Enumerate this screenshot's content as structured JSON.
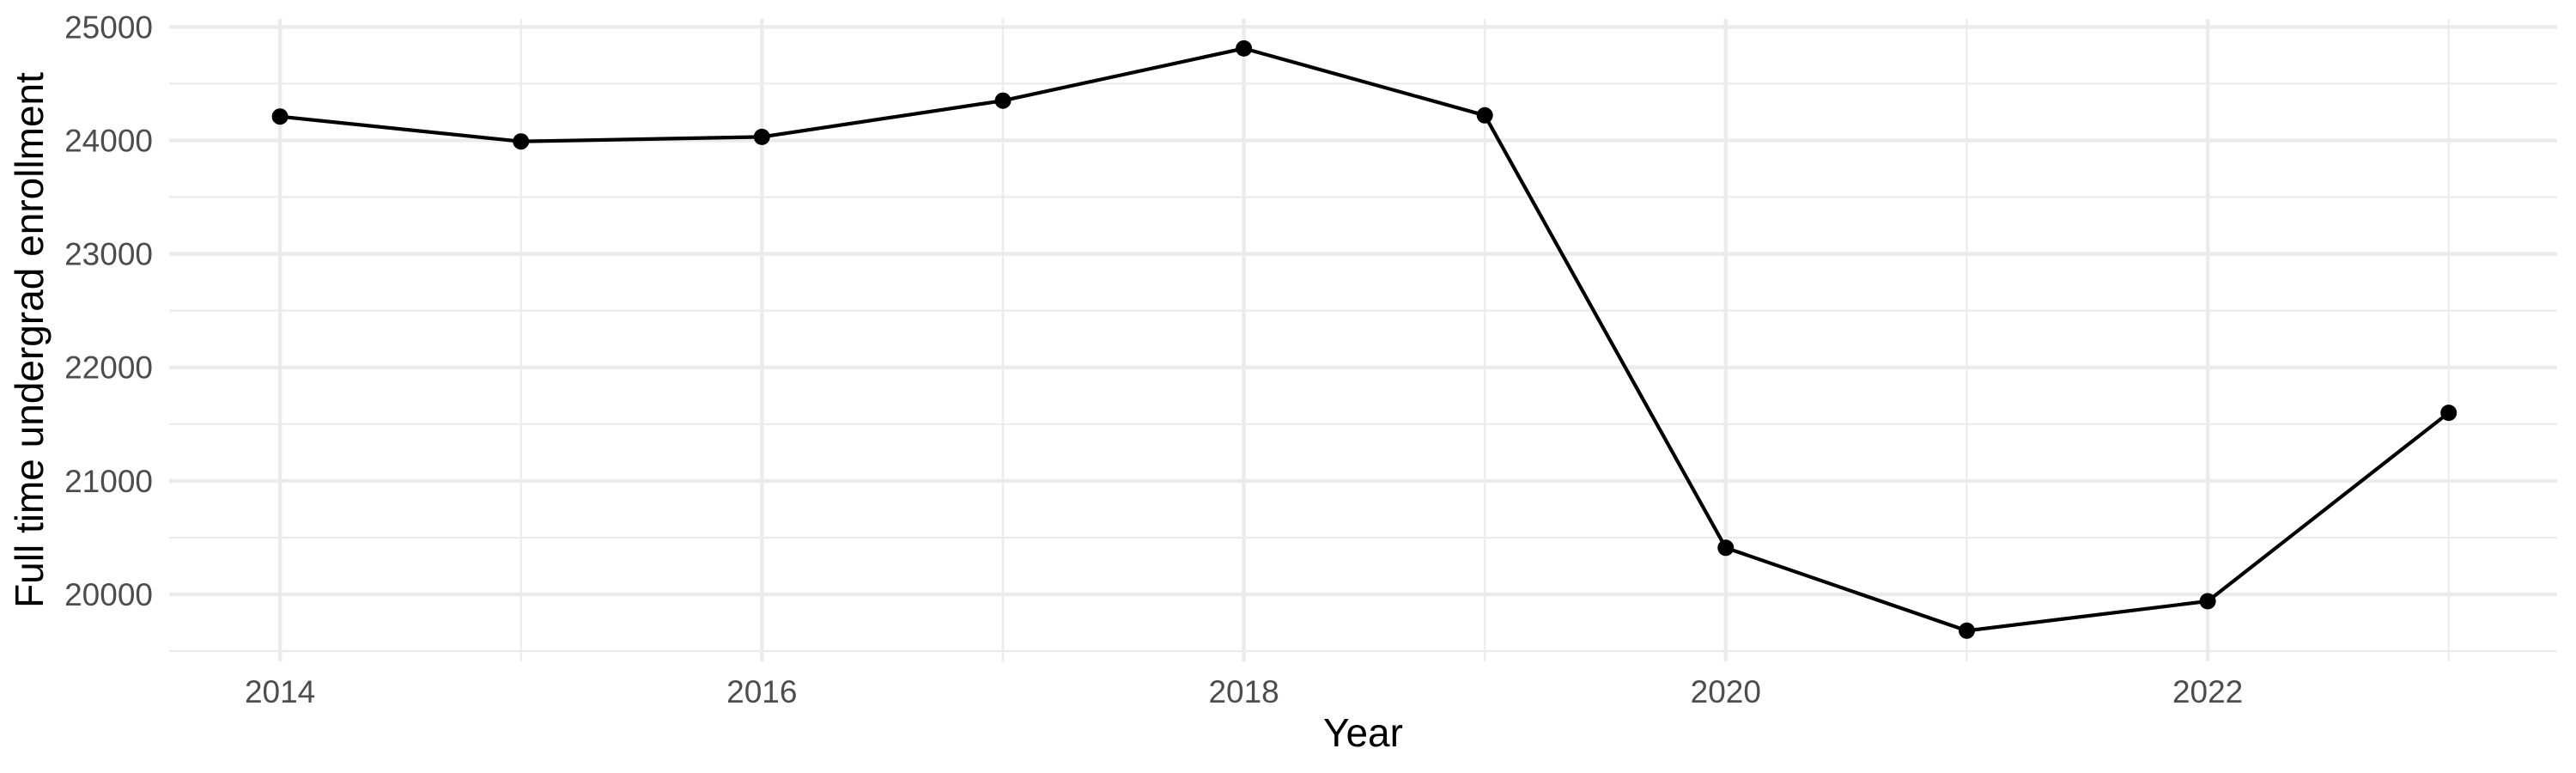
{
  "figure": {
    "background": "#FFFFFF"
  },
  "chart_data": {
    "type": "line",
    "title": "",
    "xlabel": "Year",
    "ylabel": "Full time undergrad enrollment",
    "x": [
      2014,
      2015,
      2016,
      2017,
      2018,
      2019,
      2020,
      2021,
      2022,
      2023
    ],
    "series": [
      {
        "name": "Full time undergrad enrollment",
        "values": [
          24210,
          23990,
          24030,
          24350,
          24810,
          24220,
          20410,
          19680,
          19940,
          21600
        ]
      }
    ],
    "x_tick_labels": [
      "2014",
      "2016",
      "2018",
      "2020",
      "2022"
    ],
    "x_tick_positions": [
      2014,
      2016,
      2018,
      2020,
      2022
    ],
    "x_minor_gridlines": [
      2015,
      2017,
      2019,
      2021,
      2023
    ],
    "y_tick_labels": [
      "20000",
      "21000",
      "22000",
      "23000",
      "24000",
      "25000"
    ],
    "y_tick_positions": [
      20000,
      21000,
      22000,
      23000,
      24000,
      25000
    ],
    "y_minor_gridlines": [
      19500,
      20500,
      21500,
      22500,
      23500,
      24500
    ],
    "xlim": [
      2013.54,
      2023.45
    ],
    "ylim": [
      19410,
      25070
    ],
    "grid": "major-and-minor",
    "legend": "none",
    "colors": {
      "line": "#000000",
      "point": "#000000",
      "gridline": "#EBEBEB",
      "tick_text": "#4D4D4D",
      "title_text": "#000000",
      "background": "#FFFFFF"
    }
  }
}
